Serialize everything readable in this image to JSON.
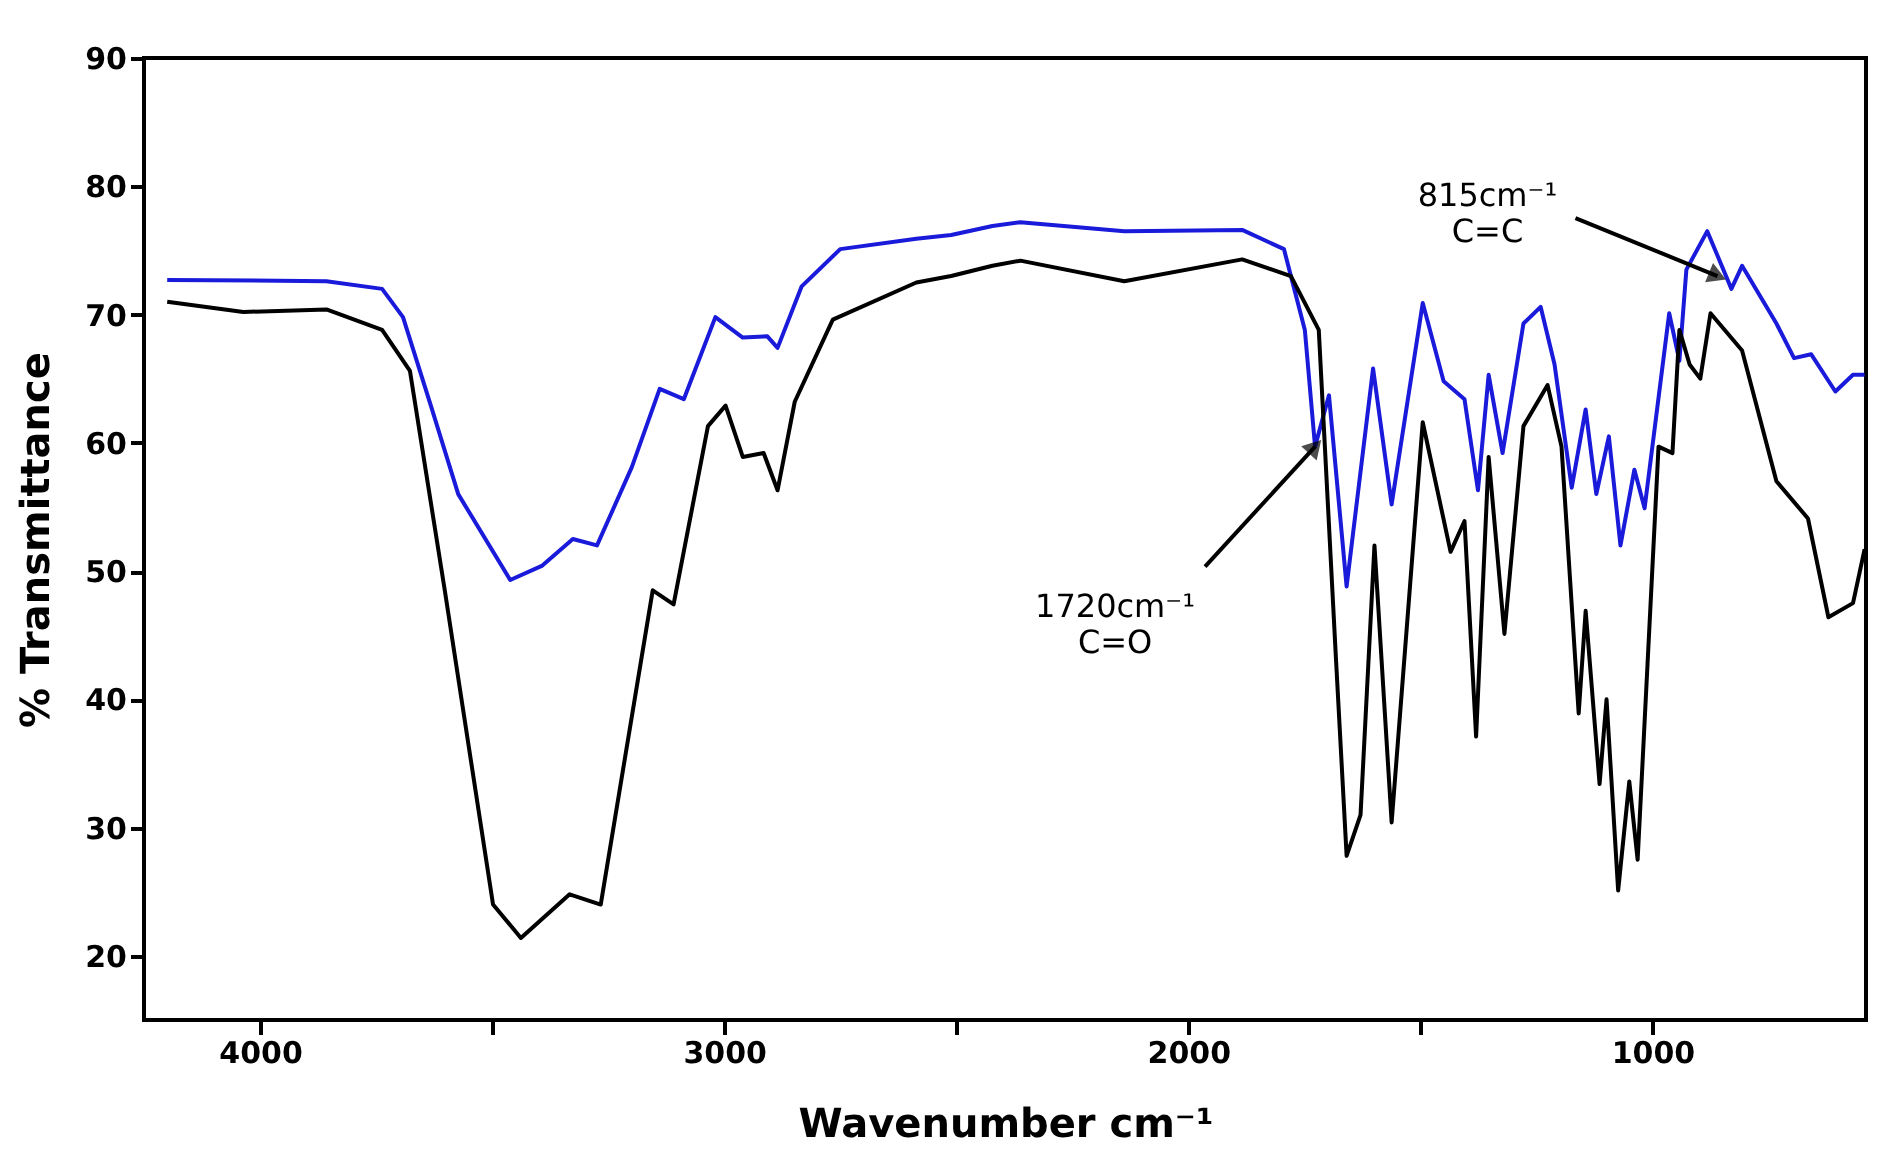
{
  "chart_data": {
    "type": "line",
    "xlabel": "Wavenumber cm⁻¹",
    "ylabel": "% Transmittance",
    "xlim": [
      4250,
      540
    ],
    "ylim": [
      15,
      90
    ],
    "xticks": [
      4000,
      {
        "value": 3500,
        "label": null
      },
      3000,
      {
        "value": 2500,
        "label": null
      },
      2000,
      {
        "value": 1500,
        "label": null
      },
      1000
    ],
    "yticks": [
      20,
      30,
      40,
      50,
      60,
      70,
      80,
      90
    ],
    "grid": false,
    "legend": false,
    "marker": "none",
    "line_style": "solid",
    "annotations": [
      {
        "text": "1720cm⁻¹\nC=O",
        "x": 1727,
        "y": 59.7
      },
      {
        "text": "815cm⁻¹\nC=C",
        "x": 860,
        "y": 73
      }
    ],
    "series": [
      {
        "color": "#1a1adb",
        "x": [
          4200,
          3857,
          3737,
          3692,
          3632,
          3573,
          3461,
          3393,
          3326,
          3274,
          3199,
          3139,
          3087,
          3019,
          2960,
          2907,
          2885,
          2833,
          2750,
          2586,
          2511,
          2422,
          2362,
          2138,
          1884,
          1794,
          1749,
          1727,
          1697,
          1659,
          1602,
          1562,
          1495,
          1450,
          1405,
          1376,
          1353,
          1323,
          1278,
          1241,
          1211,
          1174,
          1144,
          1121,
          1094,
          1069,
          1039,
          1017,
          964,
          942,
          927,
          882,
          830,
          807,
          733,
          695,
          658,
          606,
          568,
          543
        ],
        "values": [
          72.7,
          72.6,
          72.0,
          69.8,
          62.9,
          56.0,
          49.3,
          50.4,
          52.5,
          52.0,
          58.1,
          64.2,
          63.4,
          69.8,
          68.2,
          68.3,
          67.4,
          72.2,
          75.1,
          75.9,
          76.2,
          76.9,
          77.2,
          76.5,
          76.6,
          75.1,
          68.8,
          59.7,
          63.7,
          48.8,
          65.8,
          55.2,
          70.9,
          64.8,
          63.4,
          56.3,
          65.3,
          59.2,
          69.3,
          70.6,
          66.1,
          56.5,
          62.6,
          56.0,
          60.5,
          52.0,
          57.9,
          54.9,
          70.1,
          66.4,
          73.5,
          76.5,
          72.0,
          73.8,
          69.3,
          66.6,
          66.9,
          64.0,
          65.3,
          65.3
        ]
      },
      {
        "color": "#000000",
        "x": [
          4200,
          4036,
          3857,
          3737,
          3677,
          3602,
          3498,
          3438,
          3333,
          3266,
          3154,
          3109,
          3035,
          2997,
          2960,
          2915,
          2885,
          2848,
          2766,
          2586,
          2511,
          2422,
          2362,
          2138,
          1884,
          1779,
          1719,
          1682,
          1659,
          1629,
          1599,
          1562,
          1495,
          1435,
          1405,
          1380,
          1353,
          1319,
          1278,
          1226,
          1196,
          1159,
          1144,
          1114,
          1099,
          1074,
          1050,
          1032,
          987,
          957,
          942,
          920,
          897,
          875,
          807,
          733,
          665,
          621,
          568,
          543
        ],
        "values": [
          71.0,
          70.2,
          70.4,
          68.8,
          65.6,
          48.5,
          24.0,
          21.4,
          24.8,
          24.0,
          48.5,
          47.4,
          61.3,
          62.9,
          58.9,
          59.2,
          56.3,
          63.2,
          69.6,
          72.5,
          73.0,
          73.8,
          74.2,
          72.6,
          74.3,
          73.0,
          68.8,
          43.2,
          27.8,
          31.0,
          52.0,
          30.4,
          61.6,
          51.5,
          53.9,
          37.1,
          58.9,
          45.1,
          61.3,
          64.5,
          59.7,
          38.9,
          46.9,
          33.4,
          40.0,
          25.1,
          33.6,
          27.5,
          59.7,
          59.2,
          68.8,
          66.1,
          65.0,
          70.1,
          67.2,
          57.0,
          54.1,
          46.4,
          47.5,
          51.7
        ]
      }
    ]
  }
}
